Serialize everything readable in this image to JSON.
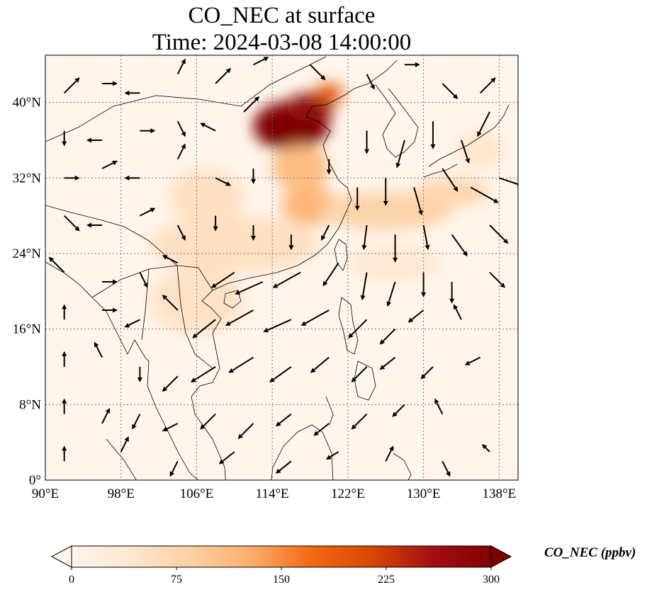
{
  "title": {
    "line1": "CO_NEC at surface",
    "line2": "Time: 2024-03-08 14:00:00"
  },
  "map": {
    "lon_range": [
      90,
      140
    ],
    "lat_range": [
      0,
      45
    ],
    "lon_ticks": [
      {
        "value": 90,
        "label": "90°E"
      },
      {
        "value": 98,
        "label": "98°E"
      },
      {
        "value": 106,
        "label": "106°E"
      },
      {
        "value": 114,
        "label": "114°E"
      },
      {
        "value": 122,
        "label": "122°E"
      },
      {
        "value": 130,
        "label": "130°E"
      },
      {
        "value": 138,
        "label": "138°E"
      }
    ],
    "lat_ticks": [
      {
        "value": 0,
        "label": "0°"
      },
      {
        "value": 8,
        "label": "8°N"
      },
      {
        "value": 16,
        "label": "16°N"
      },
      {
        "value": 24,
        "label": "24°N"
      },
      {
        "value": 32,
        "label": "32°N"
      },
      {
        "value": 40,
        "label": "40°N"
      }
    ],
    "gridlines": true,
    "background_color": "#fff5eb",
    "coast_color": "#000000",
    "plumes": [
      {
        "lon": 116,
        "lat": 37.5,
        "rx": 4,
        "ry": 2.6,
        "value": 300
      },
      {
        "lon": 118,
        "lat": 39.5,
        "rx": 2.5,
        "ry": 1.5,
        "value": 280
      },
      {
        "lon": 120,
        "lat": 41,
        "rx": 1.5,
        "ry": 1,
        "value": 190
      },
      {
        "lon": 117,
        "lat": 33,
        "rx": 3,
        "ry": 2.5,
        "value": 110
      },
      {
        "lon": 118,
        "lat": 29,
        "rx": 3,
        "ry": 2,
        "value": 120
      },
      {
        "lon": 126,
        "lat": 28.5,
        "rx": 7,
        "ry": 2,
        "value": 80
      },
      {
        "lon": 133,
        "lat": 30.5,
        "rx": 4,
        "ry": 1.5,
        "value": 75
      },
      {
        "lon": 107,
        "lat": 30,
        "rx": 4,
        "ry": 3,
        "value": 55
      },
      {
        "lon": 110,
        "lat": 25,
        "rx": 9,
        "ry": 3,
        "value": 55
      },
      {
        "lon": 106,
        "lat": 19,
        "rx": 5,
        "ry": 3.5,
        "value": 50
      },
      {
        "lon": 127,
        "lat": 23,
        "rx": 5,
        "ry": 2,
        "value": 35
      },
      {
        "lon": 136,
        "lat": 35,
        "rx": 2.5,
        "ry": 2,
        "value": 45
      }
    ],
    "winds": [
      {
        "lon": 92,
        "lat": 41,
        "u": 1,
        "v": 1
      },
      {
        "lon": 96,
        "lat": 42,
        "u": 1,
        "v": 0
      },
      {
        "lon": 100,
        "lat": 41,
        "u": -1,
        "v": 0
      },
      {
        "lon": 104,
        "lat": 43,
        "u": 0.5,
        "v": 1
      },
      {
        "lon": 108,
        "lat": 42,
        "u": 1,
        "v": 1
      },
      {
        "lon": 112,
        "lat": 44,
        "u": 1,
        "v": 0.5
      },
      {
        "lon": 118,
        "lat": 44,
        "u": 1,
        "v": -1
      },
      {
        "lon": 124,
        "lat": 43,
        "u": 0.5,
        "v": -1
      },
      {
        "lon": 128,
        "lat": 44,
        "u": 1,
        "v": 0
      },
      {
        "lon": 132,
        "lat": 42,
        "u": 1,
        "v": -1
      },
      {
        "lon": 136,
        "lat": 41,
        "u": 1,
        "v": 1
      },
      {
        "lon": 92,
        "lat": 37,
        "u": 0,
        "v": -1
      },
      {
        "lon": 96,
        "lat": 36,
        "u": -1,
        "v": 0
      },
      {
        "lon": 100,
        "lat": 37,
        "u": 1,
        "v": 0
      },
      {
        "lon": 104,
        "lat": 38,
        "u": 0.5,
        "v": -1
      },
      {
        "lon": 108,
        "lat": 37,
        "u": -1,
        "v": 0.5
      },
      {
        "lon": 111,
        "lat": 39,
        "u": 1,
        "v": 1
      },
      {
        "lon": 124,
        "lat": 37,
        "u": 0,
        "v": -1.5
      },
      {
        "lon": 128,
        "lat": 36,
        "u": -0.5,
        "v": -1.8
      },
      {
        "lon": 131,
        "lat": 38,
        "u": 0,
        "v": -1.8
      },
      {
        "lon": 134,
        "lat": 36,
        "u": 0.5,
        "v": -1.5
      },
      {
        "lon": 137,
        "lat": 39,
        "u": -0.8,
        "v": -1.6
      },
      {
        "lon": 92,
        "lat": 32,
        "u": 1,
        "v": 0
      },
      {
        "lon": 96,
        "lat": 33,
        "u": 1,
        "v": 0.5
      },
      {
        "lon": 100,
        "lat": 32,
        "u": -1,
        "v": 0
      },
      {
        "lon": 104,
        "lat": 34,
        "u": 0.5,
        "v": 1
      },
      {
        "lon": 108,
        "lat": 32,
        "u": 1,
        "v": -0.5
      },
      {
        "lon": 112,
        "lat": 33,
        "u": 0,
        "v": -1
      },
      {
        "lon": 120,
        "lat": 34,
        "u": 0,
        "v": -1
      },
      {
        "lon": 123,
        "lat": 31,
        "u": 0,
        "v": -1.5
      },
      {
        "lon": 126,
        "lat": 32,
        "u": 0,
        "v": -1.8
      },
      {
        "lon": 129,
        "lat": 31,
        "u": 0.5,
        "v": -1.8
      },
      {
        "lon": 132,
        "lat": 33,
        "u": 1,
        "v": -1.5
      },
      {
        "lon": 135,
        "lat": 31,
        "u": 1.8,
        "v": -1
      },
      {
        "lon": 138,
        "lat": 32,
        "u": 1.5,
        "v": -0.5
      },
      {
        "lon": 92,
        "lat": 28,
        "u": 1,
        "v": -1
      },
      {
        "lon": 96,
        "lat": 27,
        "u": -1,
        "v": 0
      },
      {
        "lon": 100,
        "lat": 28,
        "u": 1,
        "v": 0.5
      },
      {
        "lon": 104,
        "lat": 27,
        "u": 0.5,
        "v": -1
      },
      {
        "lon": 108,
        "lat": 28,
        "u": 0,
        "v": -1
      },
      {
        "lon": 112,
        "lat": 27,
        "u": 0,
        "v": -1
      },
      {
        "lon": 116,
        "lat": 26,
        "u": 0,
        "v": -1
      },
      {
        "lon": 120,
        "lat": 27,
        "u": -0.5,
        "v": -1
      },
      {
        "lon": 124,
        "lat": 27,
        "u": -0.2,
        "v": -1.6
      },
      {
        "lon": 127,
        "lat": 26,
        "u": 0,
        "v": -1.8
      },
      {
        "lon": 130,
        "lat": 27,
        "u": 0.3,
        "v": -1.6
      },
      {
        "lon": 133,
        "lat": 26,
        "u": 1,
        "v": -1.4
      },
      {
        "lon": 137,
        "lat": 27,
        "u": 1.2,
        "v": -1.2
      },
      {
        "lon": 92,
        "lat": 22,
        "u": -1,
        "v": 1
      },
      {
        "lon": 96,
        "lat": 21,
        "u": 1,
        "v": 0
      },
      {
        "lon": 100,
        "lat": 22,
        "u": 0.5,
        "v": -1
      },
      {
        "lon": 104,
        "lat": 23,
        "u": -1,
        "v": 0.5
      },
      {
        "lon": 110,
        "lat": 22,
        "u": -1.5,
        "v": -1
      },
      {
        "lon": 113,
        "lat": 21,
        "u": -1.8,
        "v": -0.8
      },
      {
        "lon": 117,
        "lat": 22,
        "u": -1.8,
        "v": -1
      },
      {
        "lon": 121,
        "lat": 23,
        "u": -1,
        "v": -1.5
      },
      {
        "lon": 124,
        "lat": 22,
        "u": -0.3,
        "v": -1.8
      },
      {
        "lon": 127,
        "lat": 21,
        "u": -0.5,
        "v": -1.6
      },
      {
        "lon": 130,
        "lat": 22,
        "u": 0,
        "v": -1.6
      },
      {
        "lon": 133,
        "lat": 21,
        "u": 0,
        "v": -1.4
      },
      {
        "lon": 137,
        "lat": 22,
        "u": 1,
        "v": -1
      },
      {
        "lon": 92,
        "lat": 17,
        "u": 0,
        "v": 1
      },
      {
        "lon": 96,
        "lat": 18,
        "u": 1,
        "v": 0
      },
      {
        "lon": 100,
        "lat": 17,
        "u": -1,
        "v": -0.5
      },
      {
        "lon": 104,
        "lat": 18,
        "u": -1,
        "v": 1
      },
      {
        "lon": 108,
        "lat": 17,
        "u": -1.5,
        "v": -1.2
      },
      {
        "lon": 112,
        "lat": 18,
        "u": -1.8,
        "v": -1
      },
      {
        "lon": 116,
        "lat": 17,
        "u": -1.8,
        "v": -0.8
      },
      {
        "lon": 120,
        "lat": 18,
        "u": -1.8,
        "v": -1
      },
      {
        "lon": 124,
        "lat": 17,
        "u": -1.2,
        "v": -1.2
      },
      {
        "lon": 127,
        "lat": 16,
        "u": -1,
        "v": -1
      },
      {
        "lon": 130,
        "lat": 18,
        "u": -1,
        "v": -0.8
      },
      {
        "lon": 134,
        "lat": 17,
        "u": -0.5,
        "v": 1
      },
      {
        "lon": 92,
        "lat": 12,
        "u": 0,
        "v": 1
      },
      {
        "lon": 96,
        "lat": 13,
        "u": -0.5,
        "v": 1
      },
      {
        "lon": 100,
        "lat": 12,
        "u": 0,
        "v": -1
      },
      {
        "lon": 104,
        "lat": 11,
        "u": -1,
        "v": -1
      },
      {
        "lon": 108,
        "lat": 12,
        "u": -1.6,
        "v": -1
      },
      {
        "lon": 112,
        "lat": 13,
        "u": -1.6,
        "v": -1
      },
      {
        "lon": 116,
        "lat": 12,
        "u": -1.4,
        "v": -1
      },
      {
        "lon": 120,
        "lat": 13,
        "u": -1.2,
        "v": -1
      },
      {
        "lon": 124,
        "lat": 12,
        "u": -1,
        "v": -1
      },
      {
        "lon": 127,
        "lat": 13,
        "u": -1,
        "v": -0.8
      },
      {
        "lon": 131,
        "lat": 12,
        "u": -0.8,
        "v": -0.8
      },
      {
        "lon": 136,
        "lat": 13,
        "u": -1,
        "v": -0.5
      },
      {
        "lon": 92,
        "lat": 7,
        "u": 0,
        "v": 1
      },
      {
        "lon": 96,
        "lat": 6,
        "u": 0.5,
        "v": 1
      },
      {
        "lon": 100,
        "lat": 7,
        "u": -0.5,
        "v": -1
      },
      {
        "lon": 104,
        "lat": 6,
        "u": -1,
        "v": -0.5
      },
      {
        "lon": 108,
        "lat": 7,
        "u": -1,
        "v": -1
      },
      {
        "lon": 112,
        "lat": 6,
        "u": -1,
        "v": -1
      },
      {
        "lon": 116,
        "lat": 7,
        "u": -1,
        "v": -0.8
      },
      {
        "lon": 120,
        "lat": 6,
        "u": -1,
        "v": -0.8
      },
      {
        "lon": 124,
        "lat": 7,
        "u": -1,
        "v": -1
      },
      {
        "lon": 128,
        "lat": 8,
        "u": -0.8,
        "v": -0.8
      },
      {
        "lon": 132,
        "lat": 7,
        "u": -0.5,
        "v": 1
      },
      {
        "lon": 92,
        "lat": 2,
        "u": 0,
        "v": 1
      },
      {
        "lon": 98,
        "lat": 3,
        "u": 0.5,
        "v": 1
      },
      {
        "lon": 104,
        "lat": 2,
        "u": -0.5,
        "v": -1
      },
      {
        "lon": 110,
        "lat": 3,
        "u": -1,
        "v": -0.8
      },
      {
        "lon": 116,
        "lat": 2,
        "u": -1,
        "v": -0.8
      },
      {
        "lon": 121,
        "lat": 3,
        "u": -0.8,
        "v": -0.5
      },
      {
        "lon": 126,
        "lat": 2,
        "u": 0.5,
        "v": 1
      },
      {
        "lon": 132,
        "lat": 2,
        "u": 0.5,
        "v": -1
      },
      {
        "lon": 137,
        "lat": 3,
        "u": -0.5,
        "v": 0.5
      }
    ]
  },
  "colorbar": {
    "label": "CO_NEC (ppbv)",
    "min": 0,
    "max": 300,
    "extend": "both",
    "ticks": [
      {
        "value": 0,
        "label": "0"
      },
      {
        "value": 75,
        "label": "75"
      },
      {
        "value": 150,
        "label": "150"
      },
      {
        "value": 225,
        "label": "225"
      },
      {
        "value": 300,
        "label": "300"
      }
    ],
    "colors": [
      "#fff5eb",
      "#fee6ce",
      "#fdd0a2",
      "#fdae6b",
      "#f16913",
      "#d94801",
      "#a50f15",
      "#7f0000"
    ]
  }
}
